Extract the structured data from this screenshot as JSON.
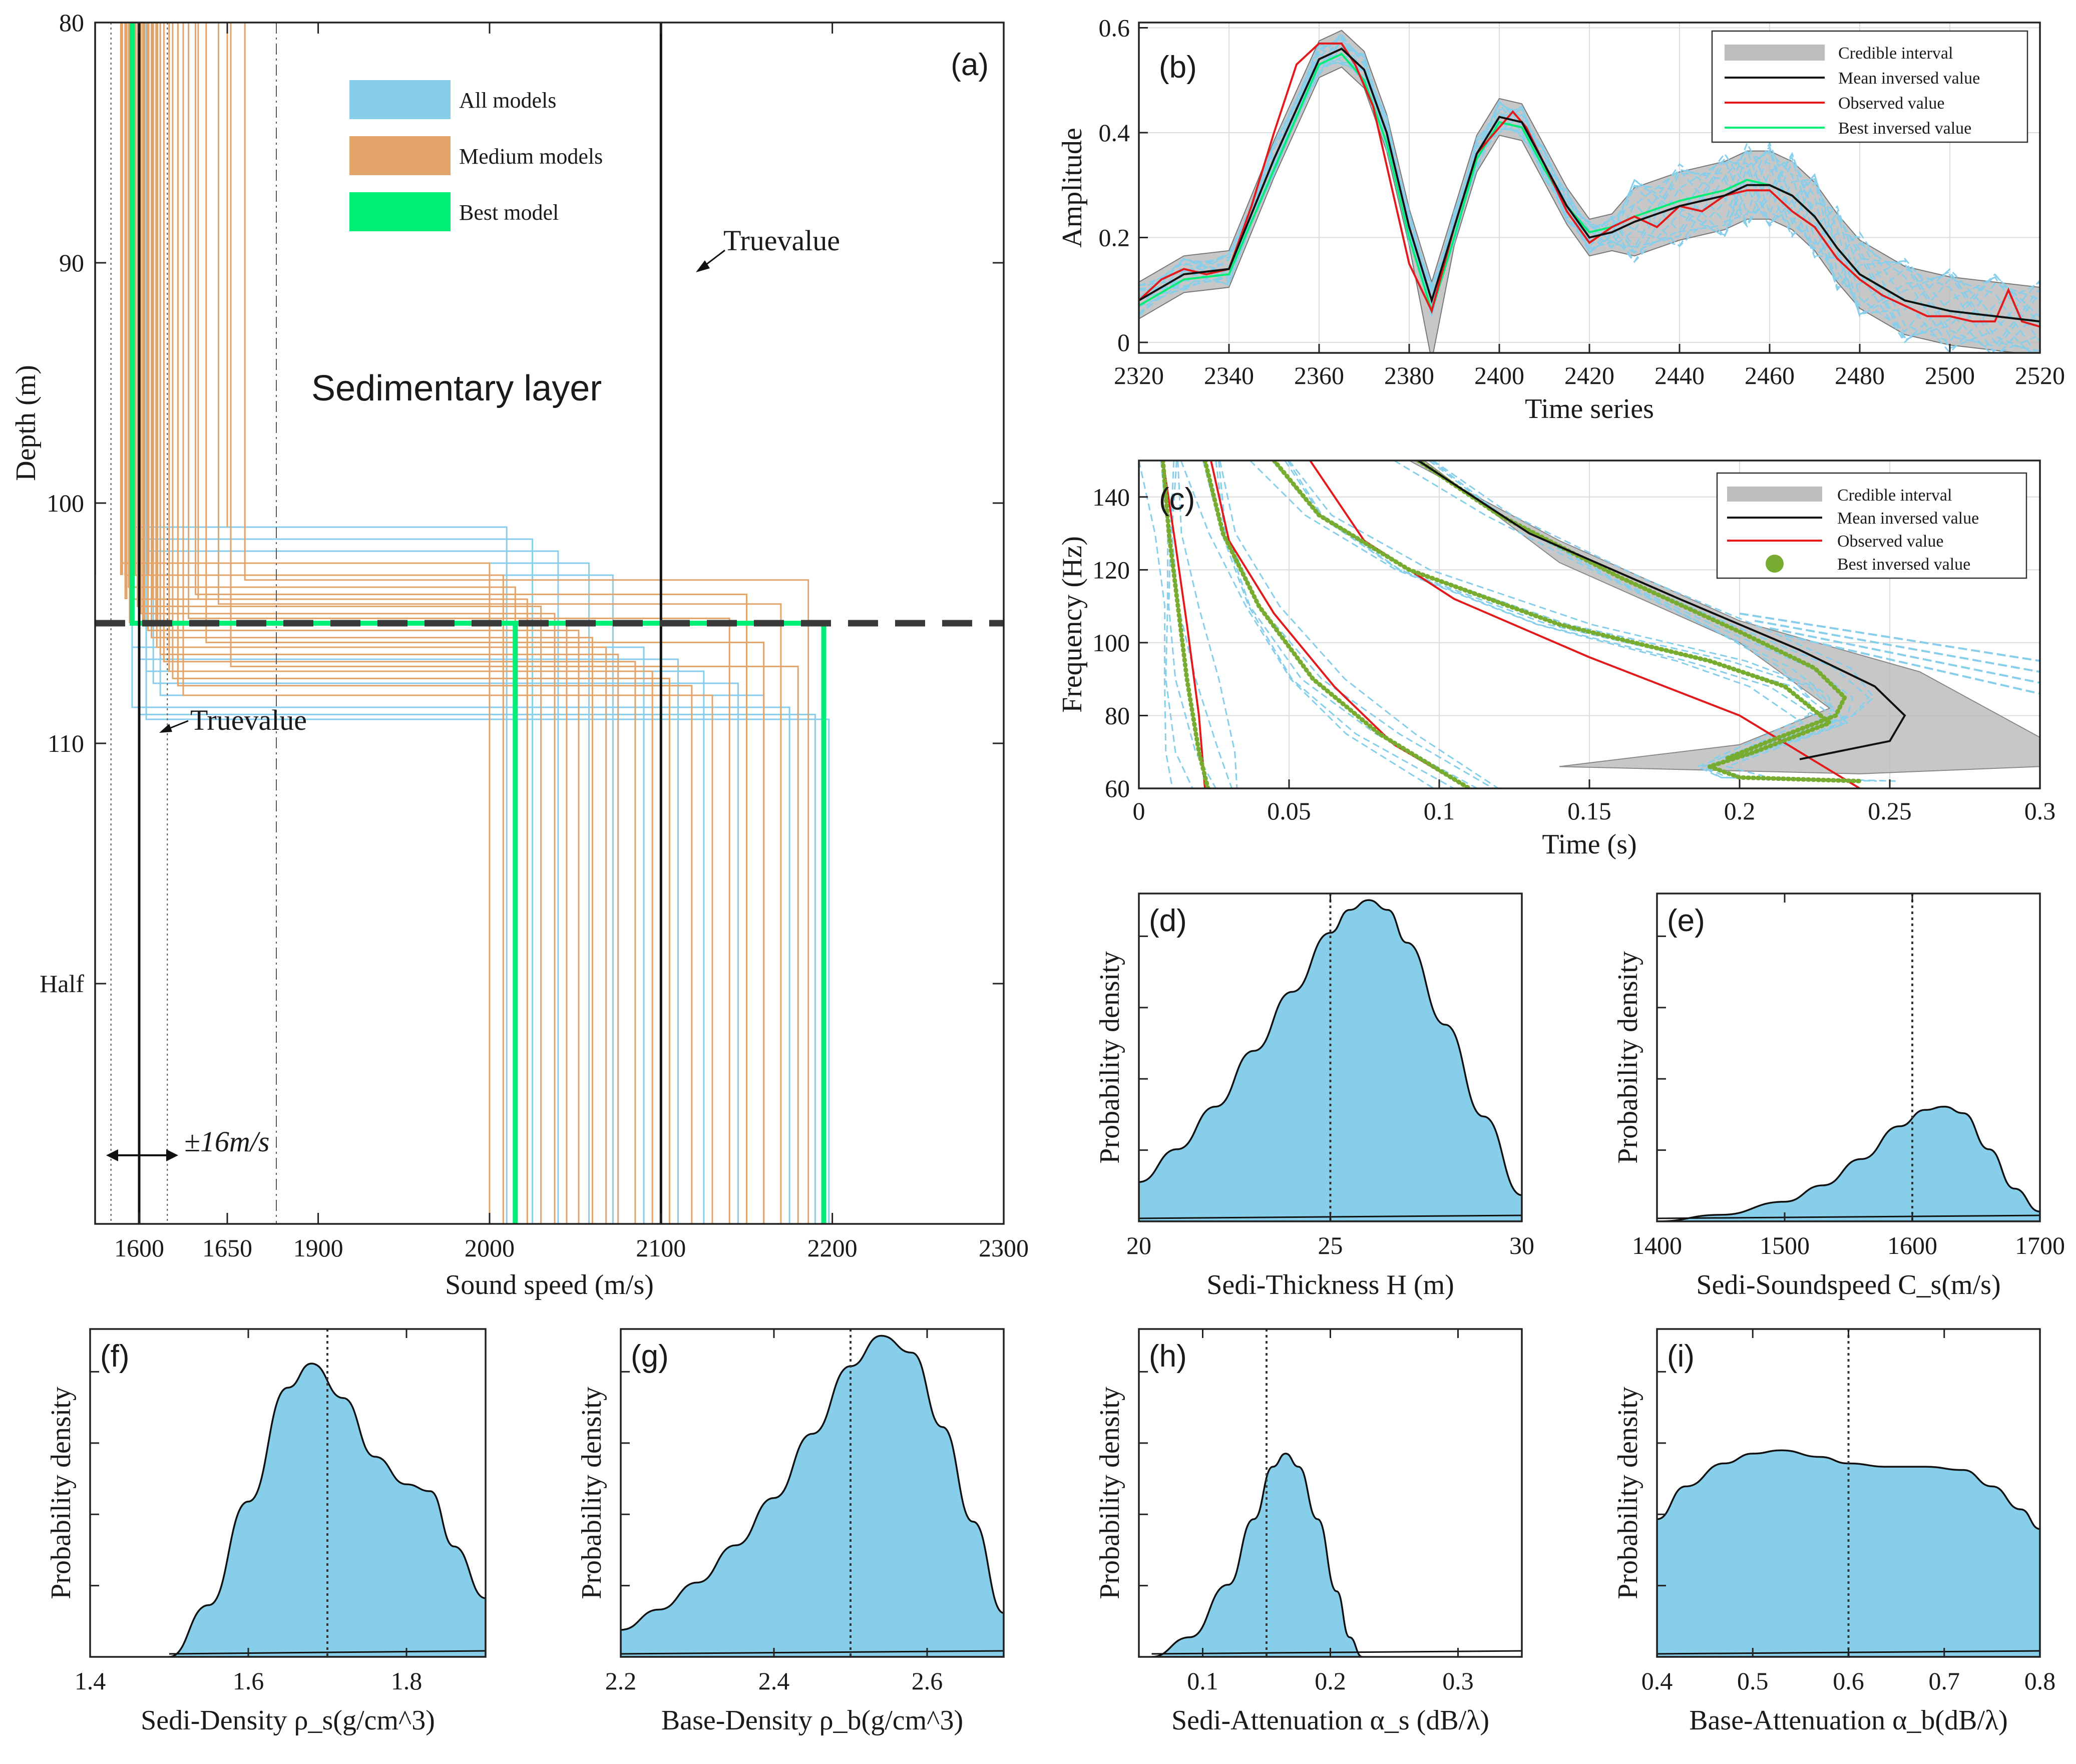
{
  "chart_data": [
    {
      "id": "a",
      "type": "line",
      "panel_label": "(a)",
      "xlabel": "Sound speed (m/s)",
      "ylabel": "Depth (m)",
      "x_tick_labels": [
        "1600",
        "1650",
        "1900",
        "2000",
        "2100",
        "2200",
        "2300"
      ],
      "y_tick_labels": [
        "80",
        "90",
        "100",
        "110",
        "Half"
      ],
      "xlim_left_segment": [
        1575,
        1700
      ],
      "xlim_right_segment": [
        1875,
        2300
      ],
      "ylim": [
        80,
        130
      ],
      "legend": [
        "All models",
        "Medium models",
        "Best model"
      ],
      "annotations": {
        "layer": "Sedimentary layer",
        "true_value_top": "Truevalue",
        "true_value_left": "Truevalue",
        "tolerance": "±16m/s"
      },
      "true_sed_speed": 1600,
      "true_base_speed": 2100,
      "true_interface_depth": 105,
      "best_model": {
        "sed_speed": 1596,
        "interface_depth": 105,
        "base_speed": 2195
      },
      "medium_models_sed_speed": [
        1590,
        1592,
        1594,
        1597,
        1599,
        1601,
        1603,
        1605,
        1607,
        1610,
        1612,
        1614,
        1617,
        1619,
        1622,
        1625,
        1628,
        1632,
        1638,
        1645,
        1652,
        1660
      ],
      "medium_models_interface_depth": [
        102.5,
        103,
        103.5,
        104,
        104.3,
        104.6,
        105,
        105.3,
        105.6,
        106,
        106.3,
        106.6,
        107,
        107.3,
        107.6,
        108,
        104.8,
        103.8,
        105.8,
        104.2,
        106.8,
        103.2
      ],
      "medium_models_base_speed": [
        2000,
        2008,
        2015,
        2022,
        2030,
        2038,
        2045,
        2052,
        2060,
        2068,
        2075,
        2085,
        2095,
        2105,
        2118,
        2130,
        2140,
        2150,
        2160,
        2170,
        2180,
        2186
      ],
      "all_models_interface_depth": [
        101,
        101.5,
        102,
        102.5,
        103,
        106,
        106.5,
        107,
        107.5,
        108,
        108.5,
        108.8,
        109
      ],
      "all_models_base_speed": [
        2010,
        2025,
        2040,
        2058,
        2072,
        2090,
        2110,
        2125,
        2145,
        2160,
        2175,
        2190,
        2198
      ]
    },
    {
      "id": "b",
      "type": "line",
      "panel_label": "(b)",
      "xlabel": "Time series",
      "ylabel": "Amplitude",
      "x_tick_labels": [
        "2320",
        "2340",
        "2360",
        "2380",
        "2400",
        "2420",
        "2440",
        "2460",
        "2480",
        "2500",
        "2520"
      ],
      "y_tick_labels": [
        "0",
        "0.2",
        "0.4",
        "0.6"
      ],
      "xlim": [
        2320,
        2520
      ],
      "ylim": [
        -0.02,
        0.61
      ],
      "legend": [
        "Credible interval",
        "Mean inversed value",
        "Observed value",
        "Best inversed value"
      ],
      "series": [
        {
          "name": "Mean inversed value",
          "x": [
            2320,
            2330,
            2340,
            2350,
            2360,
            2365,
            2370,
            2375,
            2380,
            2385,
            2390,
            2395,
            2400,
            2405,
            2410,
            2415,
            2420,
            2425,
            2430,
            2440,
            2450,
            2455,
            2460,
            2465,
            2470,
            2475,
            2480,
            2490,
            2500,
            2510,
            2520
          ],
          "values": [
            0.08,
            0.13,
            0.14,
            0.35,
            0.54,
            0.56,
            0.52,
            0.4,
            0.22,
            0.08,
            0.22,
            0.36,
            0.43,
            0.42,
            0.34,
            0.26,
            0.2,
            0.21,
            0.23,
            0.26,
            0.28,
            0.3,
            0.3,
            0.28,
            0.24,
            0.18,
            0.13,
            0.08,
            0.06,
            0.05,
            0.04
          ]
        },
        {
          "name": "Observed value",
          "x": [
            2320,
            2325,
            2330,
            2335,
            2340,
            2345,
            2350,
            2355,
            2360,
            2365,
            2368,
            2372,
            2376,
            2380,
            2385,
            2390,
            2395,
            2400,
            2403,
            2406,
            2410,
            2415,
            2420,
            2425,
            2430,
            2435,
            2440,
            2445,
            2450,
            2455,
            2460,
            2465,
            2470,
            2475,
            2480,
            2485,
            2490,
            2495,
            2500,
            2505,
            2510,
            2513,
            2516,
            2520
          ],
          "values": [
            0.08,
            0.12,
            0.14,
            0.13,
            0.14,
            0.26,
            0.4,
            0.53,
            0.57,
            0.57,
            0.53,
            0.45,
            0.3,
            0.15,
            0.06,
            0.22,
            0.36,
            0.41,
            0.44,
            0.41,
            0.34,
            0.25,
            0.19,
            0.22,
            0.24,
            0.22,
            0.26,
            0.25,
            0.28,
            0.29,
            0.29,
            0.25,
            0.22,
            0.16,
            0.12,
            0.09,
            0.07,
            0.05,
            0.05,
            0.04,
            0.04,
            0.1,
            0.04,
            0.03
          ]
        },
        {
          "name": "Best inversed value",
          "x": [
            2320,
            2330,
            2340,
            2350,
            2360,
            2365,
            2370,
            2375,
            2380,
            2385,
            2390,
            2395,
            2400,
            2405,
            2410,
            2415,
            2420,
            2425,
            2430,
            2440,
            2450,
            2455,
            2460,
            2465,
            2470,
            2475,
            2480,
            2490,
            2500,
            2510,
            2520
          ],
          "values": [
            0.07,
            0.12,
            0.13,
            0.33,
            0.53,
            0.55,
            0.5,
            0.38,
            0.2,
            0.06,
            0.2,
            0.35,
            0.42,
            0.41,
            0.33,
            0.26,
            0.21,
            0.22,
            0.24,
            0.27,
            0.29,
            0.31,
            0.3,
            0.28,
            0.24,
            0.18,
            0.13,
            0.08,
            0.06,
            0.05,
            0.04
          ]
        }
      ]
    },
    {
      "id": "c",
      "type": "line",
      "panel_label": "(c)",
      "xlabel": "Time (s)",
      "ylabel": "Frequency (Hz)",
      "x_tick_labels": [
        "0",
        "0.05",
        "0.1",
        "0.15",
        "0.2",
        "0.25",
        "0.3"
      ],
      "y_tick_labels": [
        "60",
        "80",
        "100",
        "120",
        "140"
      ],
      "xlim": [
        0,
        0.3
      ],
      "ylim": [
        60,
        150
      ],
      "legend": [
        "Credible interval",
        "Mean inversed value",
        "Observed value",
        "Best inversed value"
      ],
      "modes_best": [
        {
          "t": [
            0.008,
            0.01,
            0.013,
            0.016,
            0.02,
            0.023
          ],
          "f": [
            150,
            130,
            110,
            90,
            70,
            60
          ]
        },
        {
          "t": [
            0.022,
            0.028,
            0.04,
            0.058,
            0.08,
            0.11
          ],
          "f": [
            150,
            130,
            110,
            90,
            75,
            60
          ]
        },
        {
          "t": [
            0.045,
            0.06,
            0.09,
            0.14,
            0.19,
            0.215,
            0.23,
            0.205,
            0.19,
            0.2,
            0.24
          ],
          "f": [
            150,
            135,
            120,
            105,
            95,
            88,
            78,
            70,
            66,
            63,
            62
          ]
        },
        {
          "t": [
            0.093,
            0.12,
            0.16,
            0.2,
            0.225,
            0.235,
            0.232,
            0.21,
            0.195
          ],
          "f": [
            150,
            135,
            118,
            103,
            93,
            85,
            80,
            73,
            68
          ]
        }
      ],
      "modes_observed": [
        {
          "t": [
            0.008,
            0.012,
            0.016,
            0.02,
            0.022
          ],
          "f": [
            150,
            128,
            105,
            80,
            60
          ]
        },
        {
          "t": [
            0.024,
            0.03,
            0.045,
            0.065,
            0.085,
            0.11
          ],
          "f": [
            150,
            128,
            108,
            88,
            72,
            60
          ]
        },
        {
          "t": [
            0.057,
            0.075,
            0.105,
            0.15,
            0.2,
            0.24
          ],
          "f": [
            150,
            128,
            112,
            96,
            80,
            60
          ]
        },
        {
          "t": [
            0.093,
            0.12,
            0.16,
            0.2,
            0.225,
            0.235,
            0.232,
            0.21
          ],
          "f": [
            150,
            135,
            118,
            103,
            93,
            85,
            80,
            73
          ]
        }
      ],
      "modes_mean": [
        {
          "t": [
            0.093,
            0.13,
            0.18,
            0.22,
            0.245,
            0.255,
            0.25,
            0.22
          ],
          "f": [
            150,
            130,
            112,
            98,
            88,
            80,
            73,
            68
          ]
        }
      ]
    },
    {
      "id": "d",
      "type": "area",
      "panel_label": "(d)",
      "xlabel": "Sedi-Thickness H (m)",
      "ylabel": "Probability density",
      "x_tick_labels": [
        "20",
        "25",
        "30"
      ],
      "xlim": [
        20,
        30
      ],
      "true_value": 25,
      "x": [
        20,
        21,
        22,
        23,
        24,
        25,
        25.5,
        26,
        26.5,
        27,
        28,
        29,
        30
      ],
      "values": [
        0.12,
        0.22,
        0.35,
        0.52,
        0.7,
        0.88,
        0.95,
        0.98,
        0.95,
        0.85,
        0.6,
        0.32,
        0.08
      ]
    },
    {
      "id": "e",
      "type": "area",
      "panel_label": "(e)",
      "xlabel": "Sedi-Soundspeed C_s(m/s)",
      "ylabel": "Probability density",
      "x_tick_labels": [
        "1400",
        "1500",
        "1600",
        "1700"
      ],
      "xlim": [
        1400,
        1700
      ],
      "true_value": 1600,
      "x": [
        1400,
        1450,
        1500,
        1530,
        1560,
        1590,
        1610,
        1625,
        1640,
        1660,
        1680,
        1700
      ],
      "values": [
        0.0,
        0.02,
        0.06,
        0.11,
        0.19,
        0.29,
        0.34,
        0.35,
        0.33,
        0.22,
        0.1,
        0.03
      ]
    },
    {
      "id": "f",
      "type": "area",
      "panel_label": "(f)",
      "xlabel": "Sedi-Density ρ_s(g/cm^3)",
      "ylabel": "Probability density",
      "x_tick_labels": [
        "1.4",
        "1.6",
        "1.8"
      ],
      "xlim": [
        1.4,
        1.9
      ],
      "true_value": 1.7,
      "x": [
        1.5,
        1.55,
        1.6,
        1.65,
        1.68,
        1.72,
        1.76,
        1.8,
        1.83,
        1.86,
        1.9
      ],
      "values": [
        0.0,
        0.15,
        0.45,
        0.78,
        0.85,
        0.75,
        0.58,
        0.5,
        0.48,
        0.32,
        0.17
      ]
    },
    {
      "id": "g",
      "type": "area",
      "panel_label": "(g)",
      "xlabel": "Base-Density ρ_b(g/cm^3)",
      "ylabel": "Probability density",
      "x_tick_labels": [
        "2.2",
        "2.4",
        "2.6"
      ],
      "xlim": [
        2.2,
        2.7
      ],
      "true_value": 2.5,
      "x": [
        2.2,
        2.25,
        2.3,
        2.35,
        2.4,
        2.45,
        2.5,
        2.54,
        2.58,
        2.62,
        2.66,
        2.7
      ],
      "values": [
        0.08,
        0.14,
        0.22,
        0.33,
        0.47,
        0.66,
        0.86,
        0.95,
        0.9,
        0.68,
        0.4,
        0.13
      ]
    },
    {
      "id": "h",
      "type": "area",
      "panel_label": "(h)",
      "xlabel": "Sedi-Attenuation α_s (dB/λ)",
      "ylabel": "Probability density",
      "x_tick_labels": [
        "0.1",
        "0.2",
        "0.3"
      ],
      "xlim": [
        0.05,
        0.35
      ],
      "true_value": 0.15,
      "x": [
        0.06,
        0.09,
        0.12,
        0.14,
        0.155,
        0.165,
        0.175,
        0.19,
        0.205,
        0.215,
        0.225
      ],
      "values": [
        0.0,
        0.06,
        0.22,
        0.42,
        0.58,
        0.62,
        0.58,
        0.42,
        0.2,
        0.06,
        0.0
      ]
    },
    {
      "id": "i",
      "type": "area",
      "panel_label": "(i)",
      "xlabel": "Base-Attenuation α_b(dB/λ)",
      "ylabel": "Probability density",
      "x_tick_labels": [
        "0.4",
        "0.5",
        "0.6",
        "0.7",
        "0.8"
      ],
      "xlim": [
        0.4,
        0.8
      ],
      "true_value": 0.6,
      "x": [
        0.4,
        0.43,
        0.47,
        0.5,
        0.53,
        0.57,
        0.6,
        0.64,
        0.68,
        0.72,
        0.75,
        0.78,
        0.8
      ],
      "values": [
        0.42,
        0.52,
        0.59,
        0.62,
        0.63,
        0.61,
        0.59,
        0.58,
        0.58,
        0.57,
        0.52,
        0.45,
        0.39
      ]
    }
  ],
  "colors": {
    "all_models": "#87ceeb",
    "medium_models": "#e2a46b",
    "best_model": "#00ee76",
    "observed": "#e31a1c",
    "mean": "#111111",
    "credible": "#bdbdbd",
    "best_dots": "#77ac30",
    "pdf_fill": "#87ceeb"
  }
}
